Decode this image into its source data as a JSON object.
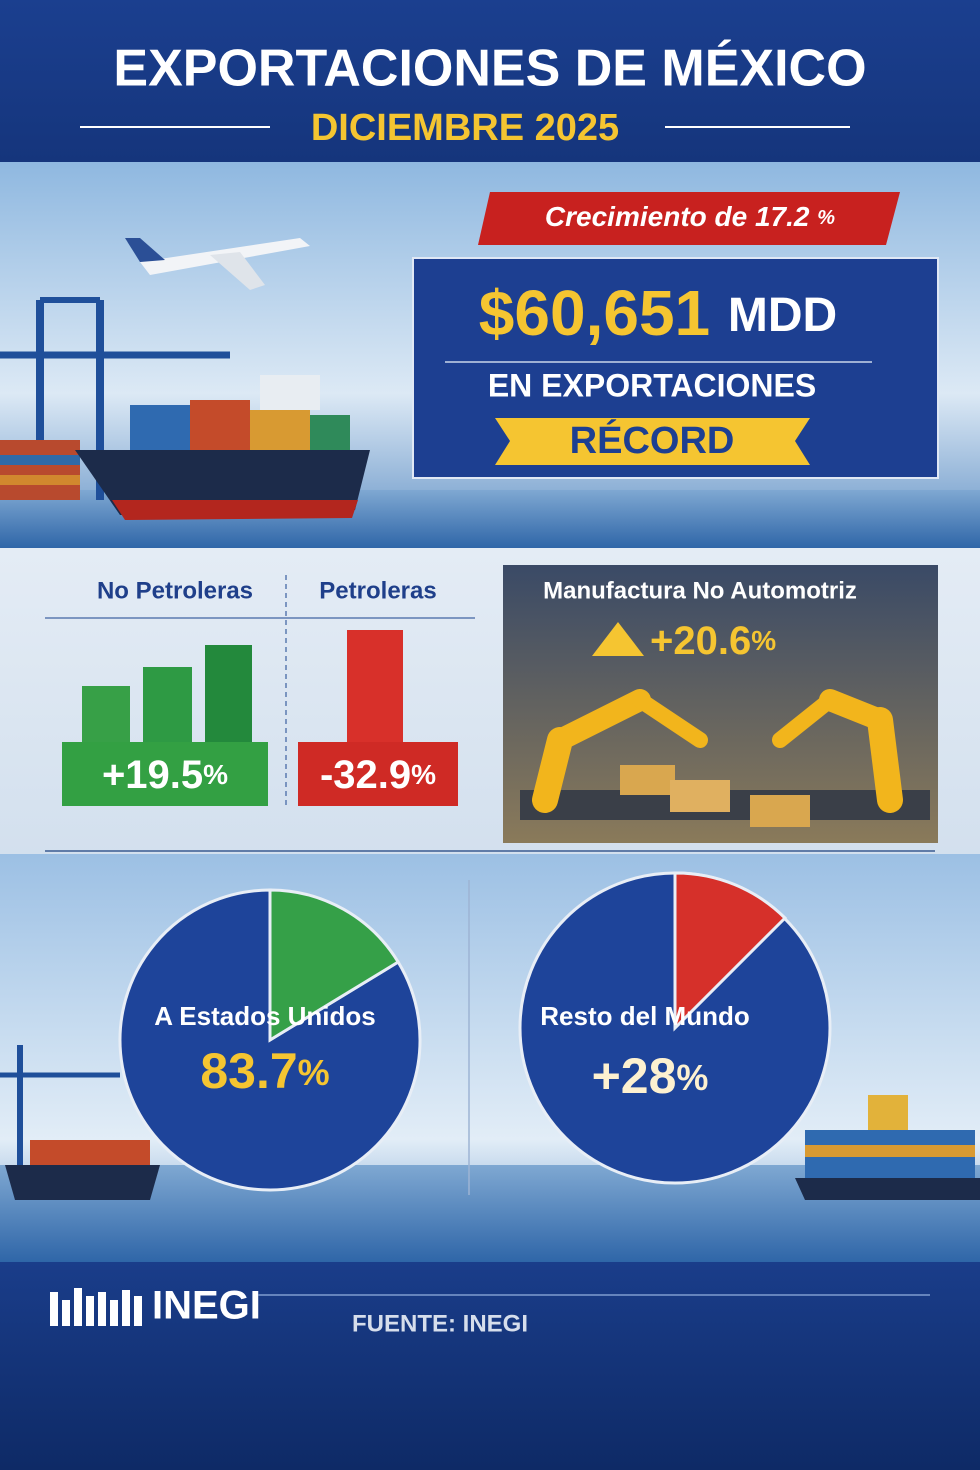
{
  "header": {
    "title": "EXPORTACIONES DE MÉXICO",
    "subtitle": "DICIEMBRE 2025"
  },
  "highlight": {
    "growth_label": "Crecimiento de",
    "growth": "17.2",
    "growth_unit": "%",
    "amount": "$60,651",
    "amount_unit": "MDD",
    "caption": "EN EXPORTACIONES",
    "badge": "RÉCORD"
  },
  "segments": [
    {
      "label": "No Petroleras",
      "change": "+19.5",
      "unit": "%"
    },
    {
      "label": "Petroleras",
      "change": "-32.9",
      "unit": "%"
    }
  ],
  "manufacturing": {
    "label": "Manufactura No Automotriz",
    "change": "+20.6",
    "unit": "%"
  },
  "destinations": [
    {
      "label": "A Estados Unidos",
      "share": 83.7,
      "unit": "%"
    },
    {
      "label": "Resto del Mundo",
      "change": "+28",
      "unit": "%"
    }
  ],
  "footer": {
    "logo": "INEGI",
    "source": "FUENTE: INEGI"
  }
}
